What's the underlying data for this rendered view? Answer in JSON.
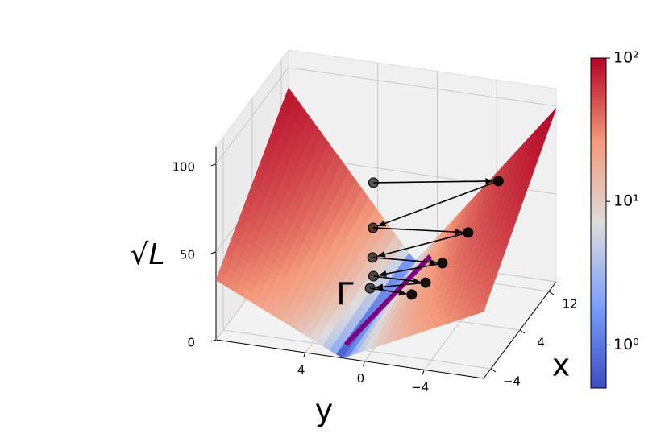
{
  "chart_data": {
    "type": "surface3d",
    "xlabel": "x",
    "ylabel": "y",
    "zlabel": "√L",
    "xlim": [
      -6,
      14
    ],
    "ylim": [
      10,
      -8
    ],
    "zlim": [
      0,
      110
    ],
    "xticks": [
      {
        "value": -4,
        "label": "−4"
      },
      4,
      12
    ],
    "yticks": [
      4,
      0,
      {
        "value": -4,
        "label": "−4"
      }
    ],
    "zticks": [
      0,
      50,
      100
    ],
    "colorbar": {
      "scale": "log",
      "lim": [
        0.5,
        100
      ],
      "ticks": [
        {
          "value": 1,
          "label": "10⁰"
        },
        {
          "value": 10,
          "label": "10¹"
        },
        {
          "value": 100,
          "label": "10²"
        }
      ],
      "colors": [
        "#3b4cc0",
        "#7b9ff9",
        "#dddcdc",
        "#f49a7b",
        "#b40426"
      ]
    },
    "trajectory": {
      "color": "#000000",
      "x": [
        12,
        12,
        9,
        9,
        6,
        6,
        3,
        3,
        0,
        0
      ],
      "y": [
        3.8,
        -4.6,
        3.1,
        -3.3,
        2.4,
        -2.3,
        1.6,
        -1.9,
        1.1,
        -1.7
      ],
      "z": [
        47.5,
        58.7,
        30.9,
        36.0,
        23.1,
        25.6,
        21.7,
        22.3,
        23.7,
        23.5
      ]
    },
    "gamma": {
      "label": "Γ",
      "color": "#800080",
      "x": [
        -3.4,
        15.4
      ],
      "y": [
        1.9,
        0.8
      ],
      "z": [
        0,
        0
      ]
    }
  }
}
